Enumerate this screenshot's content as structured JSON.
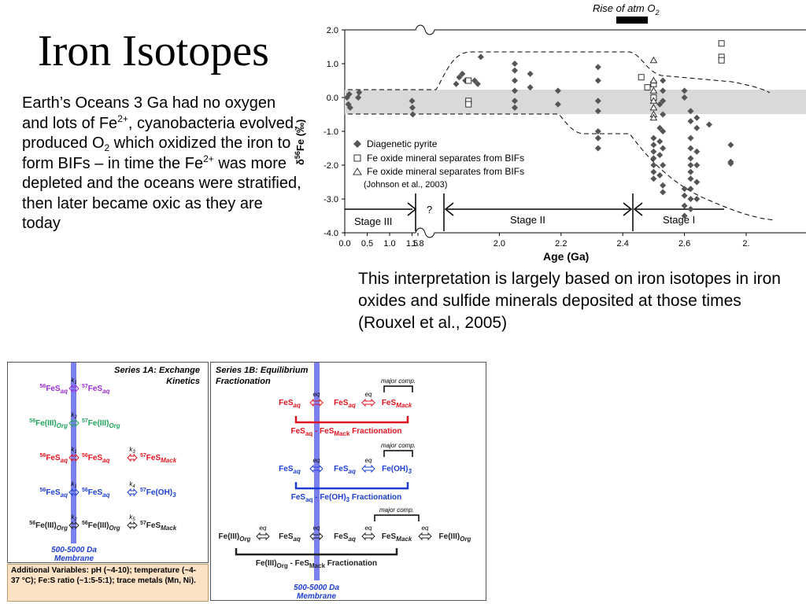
{
  "slide": {
    "title": "Iron Isotopes",
    "body_parts": [
      "Earth’s Oceans 3 Ga had no oxygen and lots of Fe",
      "2+",
      ", cyanobacteria evolved, produced O",
      "2",
      " which oxidized the iron to form BIFs – in time the Fe",
      "2+",
      " was more depleted and the oceans were stratified, then later became oxic as they are today"
    ],
    "caption": "This interpretation is largely based on iron isotopes in iron oxides and sulfide minerals deposited at those times (Rouxel et al., 2005)"
  },
  "chart_data": {
    "type": "scatter",
    "title": "",
    "xlabel": "Age (Ga)",
    "ylabel": "δ56Fe (‰)",
    "ylabel_parts": [
      "δ",
      "56",
      "Fe (‰)"
    ],
    "top_annotation": "Rise of atm O",
    "top_annotation_sub": "2",
    "x_ticks_left": [
      "0.0",
      "0.5",
      "1.0",
      "1.5",
      "1.8"
    ],
    "x_ticks_right": [
      "2.0",
      "2.2",
      "2.4",
      "2.6",
      "2."
    ],
    "y_ticks": [
      "2.0",
      "1.0",
      "0.0",
      "-1.0",
      "-2.0",
      "-3.0",
      "-4.0"
    ],
    "ylim": [
      -4.0,
      2.0
    ],
    "grid": false,
    "legend_position": "lower-left inside plot",
    "modern_band_color": "#d9d9d9",
    "stages": [
      {
        "label": "Stage III",
        "age_range": [
          0.0,
          1.6
        ]
      },
      {
        "label": "?",
        "age_range": [
          1.6,
          1.8
        ]
      },
      {
        "label": "Stage II",
        "age_range": [
          1.8,
          2.32
        ]
      },
      {
        "label": "Stage I",
        "age_range": [
          2.32,
          2.8
        ]
      }
    ],
    "series": [
      {
        "name": "Diagenetic pyrite",
        "marker": "diamond-filled",
        "color": "#555555",
        "points": [
          [
            0.05,
            0.0
          ],
          [
            0.08,
            -0.2
          ],
          [
            0.1,
            0.1
          ],
          [
            0.12,
            -0.3
          ],
          [
            0.3,
            0.0
          ],
          [
            0.32,
            0.15
          ],
          [
            1.5,
            -0.1
          ],
          [
            1.52,
            -0.3
          ],
          [
            1.54,
            -0.5
          ],
          [
            1.86,
            0.4
          ],
          [
            1.87,
            0.6
          ],
          [
            1.88,
            0.7
          ],
          [
            1.89,
            0.5
          ],
          [
            1.92,
            0.5
          ],
          [
            1.93,
            0.4
          ],
          [
            1.94,
            1.2
          ],
          [
            2.05,
            0.2
          ],
          [
            2.05,
            0.5
          ],
          [
            2.05,
            0.8
          ],
          [
            2.05,
            1.0
          ],
          [
            2.05,
            -0.1
          ],
          [
            2.05,
            -0.3
          ],
          [
            2.1,
            0.7
          ],
          [
            2.1,
            0.3
          ],
          [
            2.19,
            0.2
          ],
          [
            2.19,
            -0.2
          ],
          [
            2.32,
            0.9
          ],
          [
            2.32,
            0.5
          ],
          [
            2.32,
            -0.1
          ],
          [
            2.32,
            -0.4
          ],
          [
            2.32,
            -1.0
          ],
          [
            2.32,
            -1.2
          ],
          [
            2.32,
            -1.5
          ],
          [
            2.5,
            0.4
          ],
          [
            2.5,
            -1.2
          ],
          [
            2.5,
            -1.4
          ],
          [
            2.5,
            -1.6
          ],
          [
            2.5,
            -1.8
          ],
          [
            2.5,
            -2.0
          ],
          [
            2.5,
            -2.2
          ],
          [
            2.5,
            -2.4
          ],
          [
            2.52,
            -0.2
          ],
          [
            2.52,
            -0.9
          ],
          [
            2.52,
            -1.3
          ],
          [
            2.52,
            -1.7
          ],
          [
            2.52,
            -2.3
          ],
          [
            2.53,
            0.5
          ],
          [
            2.53,
            0.2
          ],
          [
            2.53,
            -0.1
          ],
          [
            2.53,
            -0.5
          ],
          [
            2.53,
            -1.0
          ],
          [
            2.53,
            -1.5
          ],
          [
            2.53,
            -2.0
          ],
          [
            2.53,
            -2.6
          ],
          [
            2.53,
            -2.8
          ],
          [
            2.6,
            0.2
          ],
          [
            2.6,
            0.0
          ],
          [
            2.6,
            -2.7
          ],
          [
            2.6,
            -2.9
          ],
          [
            2.6,
            -3.2
          ],
          [
            2.6,
            -3.5
          ],
          [
            2.62,
            -0.4
          ],
          [
            2.62,
            -0.7
          ],
          [
            2.62,
            -1.2
          ],
          [
            2.62,
            -1.5
          ],
          [
            2.62,
            -1.8
          ],
          [
            2.62,
            -2.0
          ],
          [
            2.62,
            -2.2
          ],
          [
            2.62,
            -2.4
          ],
          [
            2.62,
            -2.7
          ],
          [
            2.62,
            -3.0
          ],
          [
            2.62,
            -3.3
          ],
          [
            2.64,
            -0.6
          ],
          [
            2.64,
            -0.9
          ],
          [
            2.64,
            -1.6
          ],
          [
            2.64,
            -2.0
          ],
          [
            2.64,
            -2.5
          ],
          [
            2.64,
            -3.0
          ],
          [
            2.68,
            -0.8
          ],
          [
            2.75,
            -1.4
          ],
          [
            2.75,
            -1.9
          ],
          [
            2.75,
            -1.95
          ]
        ]
      },
      {
        "name": "Fe oxide mineral separates from BIFs",
        "marker": "square-open",
        "color": "#333333",
        "points": [
          [
            1.9,
            0.5
          ],
          [
            1.9,
            -0.1
          ],
          [
            1.9,
            -0.2
          ],
          [
            2.46,
            0.6
          ],
          [
            2.48,
            0.3
          ],
          [
            2.5,
            0.4
          ],
          [
            2.5,
            0.0
          ],
          [
            2.72,
            1.6
          ],
          [
            2.72,
            1.2
          ],
          [
            2.72,
            1.1
          ]
        ]
      },
      {
        "name": "Fe oxide mineral separates from BIFs",
        "marker": "triangle-open",
        "color": "#333333",
        "points": [
          [
            2.5,
            1.1
          ],
          [
            2.5,
            0.5
          ],
          [
            2.5,
            0.2
          ],
          [
            2.5,
            -0.1
          ],
          [
            2.5,
            -0.3
          ],
          [
            2.5,
            -0.5
          ],
          [
            2.5,
            -0.6
          ]
        ]
      }
    ],
    "legend": {
      "items": [
        "Diagenetic pyrite",
        "Fe oxide mineral separates from BIFs",
        "Fe oxide mineral separates from BIFs"
      ],
      "citation": "(Johnson et al., 2003)"
    }
  },
  "diagram_1a": {
    "title": "Series 1A: Exchange Kinetics",
    "membrane": "500-5000 Da Membrane",
    "colors": {
      "purple": "#9a2bd6",
      "green": "#1fa35a",
      "red": "#e0141e",
      "blue": "#1c3fd1",
      "black": "#222222",
      "membrane": "#7b7ff0"
    },
    "rows": [
      {
        "left": "56FeS",
        "left_sub": "aq",
        "k1": "k1",
        "mid": "57FeS",
        "mid_sub": "aq",
        "color": "purple"
      },
      {
        "left": "56Fe(III)",
        "left_sub": "Org",
        "k1": "k2",
        "mid": "57Fe(III)",
        "mid_sub": "Org",
        "color": "green"
      },
      {
        "left": "56FeS",
        "left_sub": "aq",
        "k1": "k1",
        "mid": "56FeS",
        "mid_sub": "aq",
        "k2": "k3",
        "right": "57FeS",
        "right_sub": "Mack",
        "color": "red"
      },
      {
        "left": "56FeS",
        "left_sub": "aq",
        "k1": "k1",
        "mid": "56FeS",
        "mid_sub": "aq",
        "k2": "k4",
        "right": "57Fe(OH)",
        "right_sub": "3",
        "color": "blue"
      },
      {
        "left": "56Fe(III)",
        "left_sub": "Org",
        "k1": "k2",
        "mid": "56Fe(III)",
        "mid_sub": "Org",
        "k2": "k5",
        "right": "57FeS",
        "right_sub": "Mack",
        "color": "black"
      }
    ],
    "note": "Additional Variables: pH (~4-10); temperature (~4-37 °C); Fe:S ratio (~1:5-5:1); trace metals (Mn, Ni)."
  },
  "diagram_1b": {
    "title": "Series 1B: Equilibrium Fractionation",
    "membrane": "500-5000 Da Membrane",
    "eq": "eq",
    "major": "major comp.",
    "red_row": [
      "FeS",
      "aq",
      "FeS",
      "aq",
      "FeS",
      "Mack"
    ],
    "red_label": "FeS",
    "red_label_rest": "aq - FeS",
    "red_label_sub2": "Mack",
    "red_label_tail": " Fractionation",
    "blue_row": [
      "FeS",
      "aq",
      "FeS",
      "aq",
      "Fe(OH)",
      "3"
    ],
    "blue_label": "FeS",
    "blue_label_rest": "aq - Fe(OH)",
    "blue_label_sub2": "3",
    "blue_label_tail": " Fractionation",
    "black_row": [
      "Fe(III)",
      "Org",
      "FeS",
      "aq",
      "FeS",
      "aq",
      "FeS",
      "Mack",
      "Fe(III)",
      "Org"
    ],
    "black_label": "Fe(III)",
    "black_label_rest": "Org - FeS",
    "black_label_sub2": "Mack",
    "black_label_tail": " Fractionation"
  }
}
